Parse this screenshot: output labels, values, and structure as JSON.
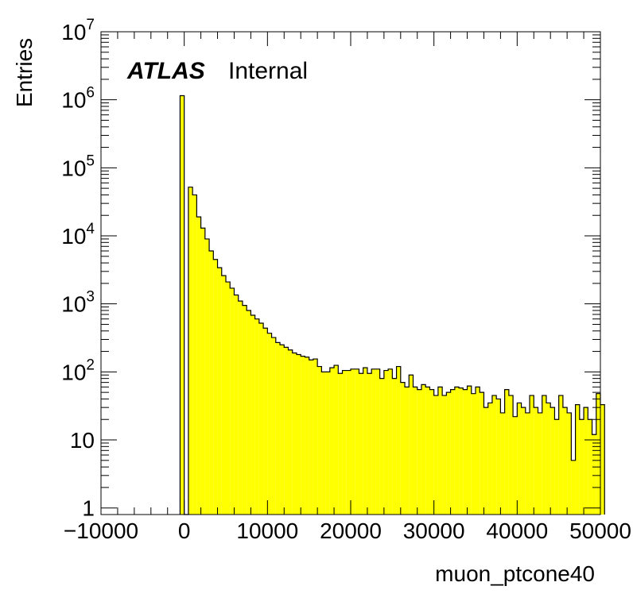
{
  "chart_data": {
    "type": "bar",
    "title": "",
    "xlabel": "muon_ptcone40",
    "ylabel": "Entries",
    "xlim": [
      -10000,
      50000
    ],
    "ylim": [
      0.8,
      10000000
    ],
    "y_scale": "log",
    "x_ticks": [
      {
        "value": -10000,
        "label": "−10000"
      },
      {
        "value": 0,
        "label": "0"
      },
      {
        "value": 10000,
        "label": "10000"
      },
      {
        "value": 20000,
        "label": "20000"
      },
      {
        "value": 30000,
        "label": "30000"
      },
      {
        "value": 40000,
        "label": "40000"
      },
      {
        "value": 50000,
        "label": "50000"
      }
    ],
    "y_ticks": [
      {
        "value": 1,
        "base": "1",
        "exp": ""
      },
      {
        "value": 10,
        "base": "10",
        "exp": ""
      },
      {
        "value": 100,
        "base": "10",
        "exp": "2"
      },
      {
        "value": 1000,
        "base": "10",
        "exp": "3"
      },
      {
        "value": 10000,
        "base": "10",
        "exp": "4"
      },
      {
        "value": 100000,
        "base": "10",
        "exp": "5"
      },
      {
        "value": 1000000,
        "base": "10",
        "exp": "6"
      },
      {
        "value": 10000000,
        "base": "10",
        "exp": "7"
      }
    ],
    "bin_width": 500,
    "bin_start": -500,
    "values": [
      1150000,
      0,
      52000,
      40000,
      19000,
      13000,
      9000,
      6000,
      4500,
      3400,
      2600,
      2100,
      1700,
      1350,
      1100,
      950,
      800,
      680,
      600,
      520,
      440,
      370,
      320,
      270,
      250,
      230,
      210,
      190,
      180,
      170,
      165,
      150,
      155,
      120,
      100,
      100,
      115,
      125,
      95,
      105,
      105,
      110,
      110,
      95,
      115,
      95,
      110,
      110,
      80,
      105,
      110,
      80,
      120,
      70,
      60,
      90,
      60,
      55,
      65,
      60,
      55,
      45,
      60,
      45,
      50,
      55,
      60,
      58,
      55,
      62,
      48,
      60,
      50,
      30,
      35,
      45,
      40,
      25,
      55,
      45,
      22,
      35,
      30,
      25,
      45,
      30,
      25,
      45,
      35,
      30,
      20,
      45,
      30,
      25,
      5,
      33,
      20,
      30,
      20,
      12,
      48,
      33
    ],
    "fill_color": "#ffff00",
    "line_color": "#000000",
    "grid": false,
    "legend": "none",
    "annotations": [
      {
        "text": "ATLAS",
        "style": "bold-italic"
      },
      {
        "text": "Internal",
        "style": "normal"
      }
    ]
  }
}
